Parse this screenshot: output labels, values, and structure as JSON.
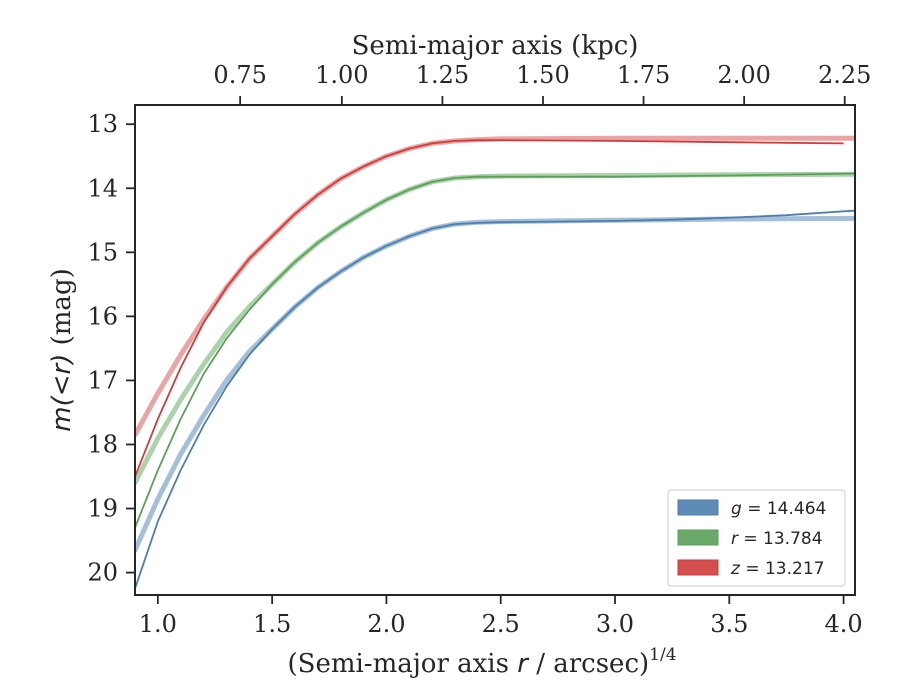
{
  "chart_data": {
    "type": "line",
    "xlabel_prefix": "(Semi-major axis ",
    "xlabel_var": "r",
    "xlabel_suffix": " / arcsec)",
    "xlabel_sup": "1/4",
    "ylabel_left": "m(<r)",
    "ylabel_right": " (mag)",
    "top_xlabel": "Semi-major axis (kpc)",
    "xlim": [
      0.9,
      4.05
    ],
    "ylim": [
      20.35,
      12.7
    ],
    "y_inverted": true,
    "x_ticks": [
      1.0,
      1.5,
      2.0,
      2.5,
      3.0,
      3.5,
      4.0
    ],
    "x_tick_labels": [
      "1.0",
      "1.5",
      "2.0",
      "2.5",
      "3.0",
      "3.5",
      "4.0"
    ],
    "y_ticks": [
      13,
      14,
      15,
      16,
      17,
      18,
      19,
      20
    ],
    "y_tick_labels": [
      "13",
      "14",
      "15",
      "16",
      "17",
      "18",
      "19",
      "20"
    ],
    "top_ticks_x": [
      1.36,
      1.805,
      2.245,
      2.685,
      3.125,
      3.565,
      4.005
    ],
    "top_tick_labels": [
      "0.75",
      "1.00",
      "1.25",
      "1.50",
      "1.75",
      "2.00",
      "2.25"
    ],
    "legend_position": "lower-right",
    "series": [
      {
        "label_var": "g",
        "label_value": " = 14.464",
        "color": "#4c7fae",
        "light_color": "#9bb8d5",
        "model": [
          [
            0.9,
            19.65
          ],
          [
            1.0,
            18.85
          ],
          [
            1.1,
            18.15
          ],
          [
            1.2,
            17.55
          ],
          [
            1.3,
            17.0
          ],
          [
            1.4,
            16.55
          ],
          [
            1.5,
            16.2
          ],
          [
            1.6,
            15.85
          ],
          [
            1.7,
            15.55
          ],
          [
            1.8,
            15.3
          ],
          [
            1.9,
            15.08
          ],
          [
            2.0,
            14.9
          ],
          [
            2.1,
            14.75
          ],
          [
            2.2,
            14.63
          ],
          [
            2.3,
            14.56
          ],
          [
            2.4,
            14.53
          ],
          [
            2.5,
            14.52
          ],
          [
            2.75,
            14.51
          ],
          [
            3.0,
            14.5
          ],
          [
            3.5,
            14.48
          ],
          [
            4.05,
            14.47
          ]
        ],
        "data": [
          [
            0.9,
            20.25
          ],
          [
            1.0,
            19.2
          ],
          [
            1.1,
            18.4
          ],
          [
            1.2,
            17.7
          ],
          [
            1.3,
            17.1
          ],
          [
            1.4,
            16.6
          ],
          [
            1.5,
            16.2
          ],
          [
            1.6,
            15.85
          ],
          [
            1.7,
            15.55
          ],
          [
            1.8,
            15.3
          ],
          [
            1.9,
            15.08
          ],
          [
            2.0,
            14.9
          ],
          [
            2.1,
            14.75
          ],
          [
            2.2,
            14.63
          ],
          [
            2.3,
            14.56
          ],
          [
            2.4,
            14.54
          ],
          [
            2.5,
            14.53
          ],
          [
            2.75,
            14.52
          ],
          [
            3.0,
            14.51
          ],
          [
            3.25,
            14.49
          ],
          [
            3.5,
            14.46
          ],
          [
            3.75,
            14.42
          ],
          [
            4.0,
            14.36
          ],
          [
            4.05,
            14.35
          ]
        ]
      },
      {
        "label_var": "r",
        "label_value": " = 13.784",
        "color": "#5aa05a",
        "light_color": "#a3cda3",
        "model": [
          [
            0.9,
            18.6
          ],
          [
            1.0,
            17.9
          ],
          [
            1.1,
            17.3
          ],
          [
            1.2,
            16.75
          ],
          [
            1.3,
            16.25
          ],
          [
            1.4,
            15.85
          ],
          [
            1.5,
            15.5
          ],
          [
            1.6,
            15.15
          ],
          [
            1.7,
            14.85
          ],
          [
            1.8,
            14.6
          ],
          [
            1.9,
            14.38
          ],
          [
            2.0,
            14.18
          ],
          [
            2.1,
            14.02
          ],
          [
            2.2,
            13.9
          ],
          [
            2.3,
            13.84
          ],
          [
            2.4,
            13.82
          ],
          [
            2.5,
            13.81
          ],
          [
            3.0,
            13.8
          ],
          [
            3.5,
            13.79
          ],
          [
            4.05,
            13.78
          ]
        ],
        "data": [
          [
            0.9,
            19.3
          ],
          [
            1.0,
            18.4
          ],
          [
            1.1,
            17.6
          ],
          [
            1.2,
            16.9
          ],
          [
            1.3,
            16.35
          ],
          [
            1.4,
            15.9
          ],
          [
            1.5,
            15.5
          ],
          [
            1.6,
            15.15
          ],
          [
            1.7,
            14.85
          ],
          [
            1.8,
            14.6
          ],
          [
            1.9,
            14.38
          ],
          [
            2.0,
            14.18
          ],
          [
            2.1,
            14.02
          ],
          [
            2.2,
            13.9
          ],
          [
            2.3,
            13.84
          ],
          [
            2.4,
            13.82
          ],
          [
            2.5,
            13.82
          ],
          [
            3.0,
            13.82
          ],
          [
            3.5,
            13.8
          ],
          [
            4.05,
            13.77
          ]
        ]
      },
      {
        "label_var": "z",
        "label_value": " = 13.217",
        "color": "#d03b3b",
        "light_color": "#e89a9a",
        "model": [
          [
            0.9,
            17.85
          ],
          [
            1.0,
            17.2
          ],
          [
            1.1,
            16.6
          ],
          [
            1.2,
            16.05
          ],
          [
            1.3,
            15.55
          ],
          [
            1.4,
            15.1
          ],
          [
            1.5,
            14.75
          ],
          [
            1.6,
            14.4
          ],
          [
            1.7,
            14.1
          ],
          [
            1.8,
            13.85
          ],
          [
            1.9,
            13.66
          ],
          [
            2.0,
            13.5
          ],
          [
            2.1,
            13.38
          ],
          [
            2.2,
            13.3
          ],
          [
            2.3,
            13.26
          ],
          [
            2.4,
            13.24
          ],
          [
            2.5,
            13.23
          ],
          [
            3.0,
            13.22
          ],
          [
            3.5,
            13.22
          ],
          [
            4.05,
            13.22
          ]
        ],
        "data": [
          [
            0.9,
            18.5
          ],
          [
            1.0,
            17.6
          ],
          [
            1.1,
            16.8
          ],
          [
            1.2,
            16.1
          ],
          [
            1.3,
            15.55
          ],
          [
            1.4,
            15.1
          ],
          [
            1.5,
            14.75
          ],
          [
            1.6,
            14.4
          ],
          [
            1.7,
            14.1
          ],
          [
            1.8,
            13.85
          ],
          [
            1.9,
            13.66
          ],
          [
            2.0,
            13.5
          ],
          [
            2.1,
            13.38
          ],
          [
            2.2,
            13.3
          ],
          [
            2.3,
            13.26
          ],
          [
            2.4,
            13.25
          ],
          [
            2.5,
            13.25
          ],
          [
            3.0,
            13.26
          ],
          [
            3.5,
            13.28
          ],
          [
            4.0,
            13.3
          ]
        ]
      }
    ]
  }
}
